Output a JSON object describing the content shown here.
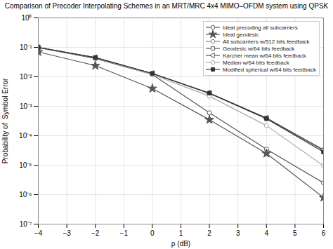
{
  "chart_data": {
    "type": "line",
    "title": "Comparison of Precoder Interpolating Schemes in an MRT/MRC 4x4 MIMO–OFDM system using QPSK",
    "x_label": "ρ (dB)",
    "y_label": "Probability of  Symbol Error",
    "x": [
      -4,
      -2,
      0,
      2,
      4,
      6
    ],
    "xlim": [
      -4,
      6
    ],
    "xticks": [
      -4,
      -3,
      -2,
      -1,
      0,
      1,
      2,
      3,
      4,
      5,
      6
    ],
    "ylim": [
      1e-07,
      1
    ],
    "yticks": [
      {
        "value": 1e-07,
        "label": "10⁻⁷"
      },
      {
        "value": 1e-06,
        "label": "10⁻⁶"
      },
      {
        "value": 1e-05,
        "label": "10⁻⁵"
      },
      {
        "value": 0.0001,
        "label": "10⁻⁴"
      },
      {
        "value": 0.001,
        "label": "10⁻³"
      },
      {
        "value": 0.01,
        "label": "10⁻²"
      },
      {
        "value": 0.1,
        "label": "10⁻¹"
      },
      {
        "value": 1,
        "label": "10⁰"
      }
    ],
    "log": "y",
    "grid": true,
    "legend": "upper-right",
    "series": [
      {
        "name": "Ideal precoding all subcarriers",
        "color": "#555555",
        "marker": "circle-open",
        "values": [
          0.098,
          0.042,
          0.012,
          0.0006,
          3.5e-05,
          2.5e-06
        ]
      },
      {
        "name": "Ideal geodesic",
        "color": "#555555",
        "marker": "star",
        "values": [
          0.07,
          0.024,
          0.004,
          0.00035,
          2.5e-05,
          8e-07
        ]
      },
      {
        "name": "All subcarriers w/512 bits feedback",
        "color": "#888888",
        "marker": "circle-open",
        "values": [
          0.099,
          0.044,
          0.013,
          0.0027,
          0.00038,
          3.2e-05
        ]
      },
      {
        "name": "Geodesic w/64 bits feedback",
        "color": "#555555",
        "marker": "square-open",
        "values": [
          0.099,
          0.045,
          0.013,
          0.0028,
          0.0004,
          3.3e-05
        ]
      },
      {
        "name": "Karcher mean w/64 bits feedback",
        "color": "#555555",
        "marker": "triangle-left-open",
        "values": [
          0.099,
          0.045,
          0.013,
          0.0028,
          0.0004,
          3.3e-05
        ]
      },
      {
        "name": "Median w/64 bits feedback",
        "color": "#aaaaaa",
        "marker": "circle-open",
        "values": [
          0.099,
          0.044,
          0.012,
          0.0022,
          0.00022,
          9.5e-06
        ]
      },
      {
        "name": "Modified spherical w/64 bits feedback",
        "color": "#333333",
        "marker": "square",
        "values": [
          0.099,
          0.045,
          0.013,
          0.0028,
          0.00038,
          2.8e-05
        ]
      }
    ]
  }
}
